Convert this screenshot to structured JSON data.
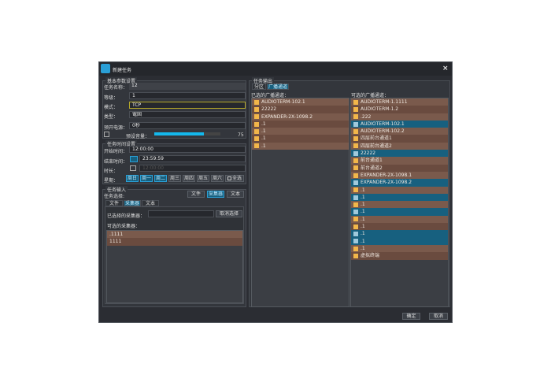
{
  "window": {
    "title": "新建任务",
    "close": "×"
  },
  "basic": {
    "group": "基本参数设置",
    "name_label": "任务名称：",
    "name_value": "12",
    "level_label": "等级：",
    "level_value": "1",
    "mode_label": "模式：",
    "mode_value": "TCP",
    "type_label": "类型：",
    "type_value": "電固",
    "open_label": "预开电源：",
    "open_value": "0秒",
    "volume_label": "预设音量：",
    "volume_value": "75",
    "volume_percent": 75
  },
  "time": {
    "group": "任务时间设置",
    "start_label": "开始时间：",
    "start_value": "12:00:00",
    "end_label": "结束时间：",
    "end_value": "23:59:59",
    "end_checked": true,
    "duration_label": "时长：",
    "duration_value": "12:00:00",
    "week_label": "星期：",
    "days": [
      {
        "label": "周日",
        "on": true
      },
      {
        "label": "周一",
        "on": true
      },
      {
        "label": "周二",
        "on": true
      },
      {
        "label": "周三",
        "on": false
      },
      {
        "label": "周四",
        "on": false
      },
      {
        "label": "周五",
        "on": false
      },
      {
        "label": "周六",
        "on": false
      }
    ],
    "all_label": "全选"
  },
  "input": {
    "group": "任务输入",
    "select_label": "任务选择:",
    "buttons": [
      {
        "label": "文件",
        "on": false
      },
      {
        "label": "采集器",
        "on": true
      },
      {
        "label": "文本",
        "on": false
      }
    ],
    "tabs": [
      {
        "label": "文件",
        "on": false
      },
      {
        "label": "采集器",
        "on": true
      },
      {
        "label": "文本",
        "on": false
      }
    ],
    "selected_label": "已选择的采集器：",
    "selected_value": "",
    "cancel_select": "取消选择",
    "available_label": "可选的采集器：",
    "available": [
      ".1111",
      "1111"
    ]
  },
  "output": {
    "group": "任务输出",
    "tabs": [
      {
        "label": "分区",
        "on": false
      },
      {
        "label": "广播通道",
        "on": true
      }
    ],
    "selected_label": "已选的广播通道：",
    "selected": [
      "AUDIOTERM-102.1",
      "22222",
      "EXPANDER-2X-1098.2",
      ".1",
      ".1",
      ".1",
      ".1"
    ],
    "available_label": "可选的广播通道：",
    "available": [
      {
        "t": "AUDIOTERM-1.1111",
        "s": false
      },
      {
        "t": "AUDIOTERM-1.2",
        "s": false
      },
      {
        "t": ".222",
        "s": false
      },
      {
        "t": "AUDIOTERM-102.1",
        "s": true
      },
      {
        "t": "AUDIOTERM-102.2",
        "s": false
      },
      {
        "t": "四层前台通道1",
        "s": false
      },
      {
        "t": "四层前台通道2",
        "s": false
      },
      {
        "t": "22222",
        "s": true
      },
      {
        "t": "前台通道1",
        "s": false
      },
      {
        "t": "前台通道2",
        "s": false
      },
      {
        "t": "EXPANDER-2X-1098.1",
        "s": false
      },
      {
        "t": "EXPANDER-2X-1098.2",
        "s": true
      },
      {
        "t": ".1",
        "s": false
      },
      {
        "t": ".1",
        "s": true
      },
      {
        "t": ".1",
        "s": false
      },
      {
        "t": ".1",
        "s": true
      },
      {
        "t": ".1",
        "s": false
      },
      {
        "t": ".1",
        "s": false
      },
      {
        "t": ".1",
        "s": true
      },
      {
        "t": ".1",
        "s": true
      },
      {
        "t": ".1",
        "s": false
      },
      {
        "t": "虚拟终端",
        "s": false
      }
    ]
  },
  "footer": {
    "ok": "确定",
    "cancel": "取消"
  }
}
